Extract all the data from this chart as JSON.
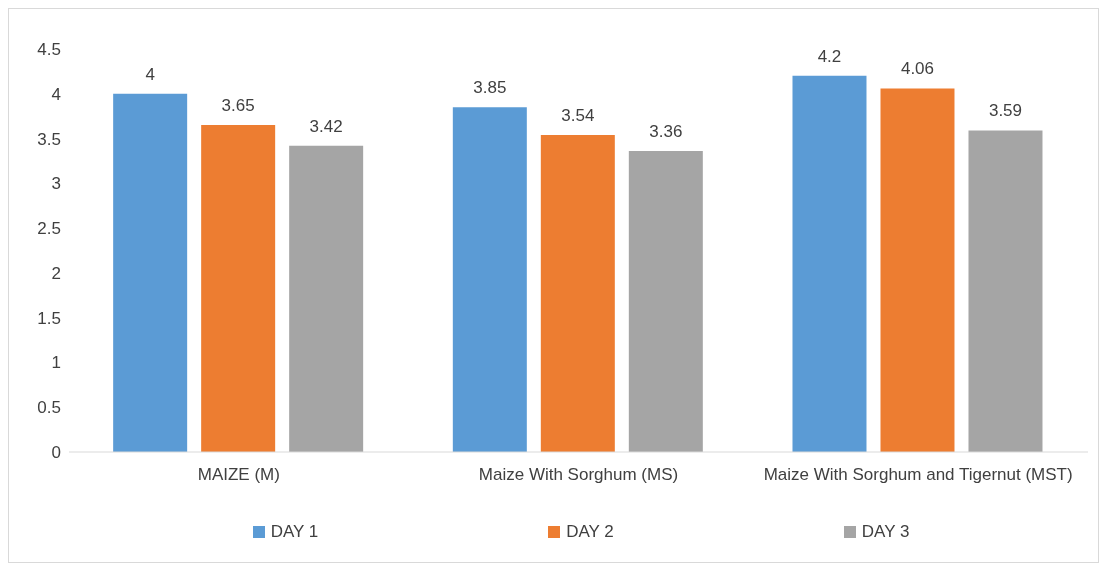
{
  "chart_data": {
    "type": "bar",
    "categories": [
      "MAIZE (M)",
      "Maize With Sorghum (MS)",
      "Maize With Sorghum and Tigernut (MST)"
    ],
    "series": [
      {
        "name": "DAY 1",
        "color": "#5b9bd5",
        "values": [
          4,
          3.85,
          4.2
        ]
      },
      {
        "name": "DAY 2",
        "color": "#ed7d31",
        "values": [
          3.65,
          3.54,
          4.06
        ]
      },
      {
        "name": "DAY 3",
        "color": "#a5a5a5",
        "values": [
          3.42,
          3.36,
          3.59
        ]
      }
    ],
    "ylim": [
      0,
      4.5
    ],
    "yticks": [
      0,
      0.5,
      1,
      1.5,
      2,
      2.5,
      3,
      3.5,
      4,
      4.5
    ],
    "legend": "bottom",
    "data_labels": true
  }
}
